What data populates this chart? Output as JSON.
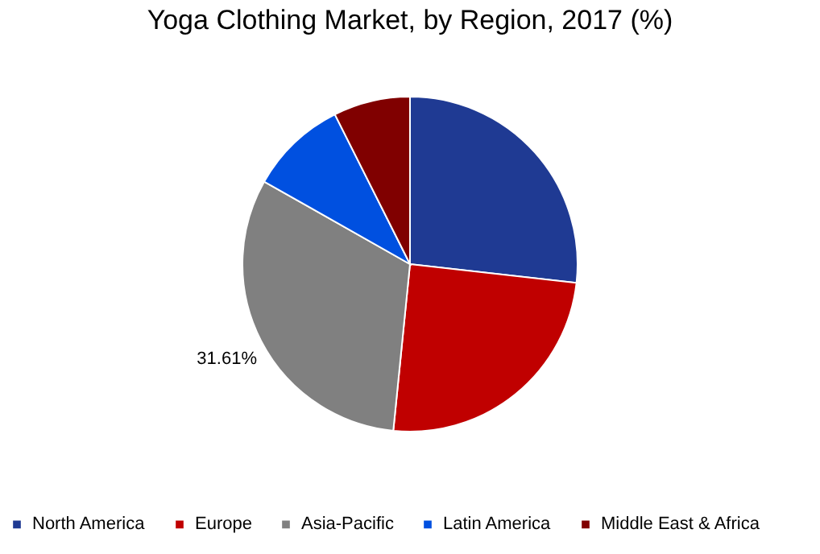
{
  "chart_data": {
    "type": "pie",
    "title": "Yoga Clothing Market, by Region, 2017 (%)",
    "categories": [
      "North America",
      "Europe",
      "Asia-Pacific",
      "Latin America",
      "Middle East & Africa"
    ],
    "values": [
      26.79,
      24.8,
      31.61,
      9.4,
      7.4
    ],
    "colors": [
      "#1f3a93",
      "#c00000",
      "#808080",
      "#0050e0",
      "#800000"
    ],
    "value_labels": [
      null,
      null,
      "31.61%",
      null,
      null
    ],
    "legend": "bottom"
  }
}
